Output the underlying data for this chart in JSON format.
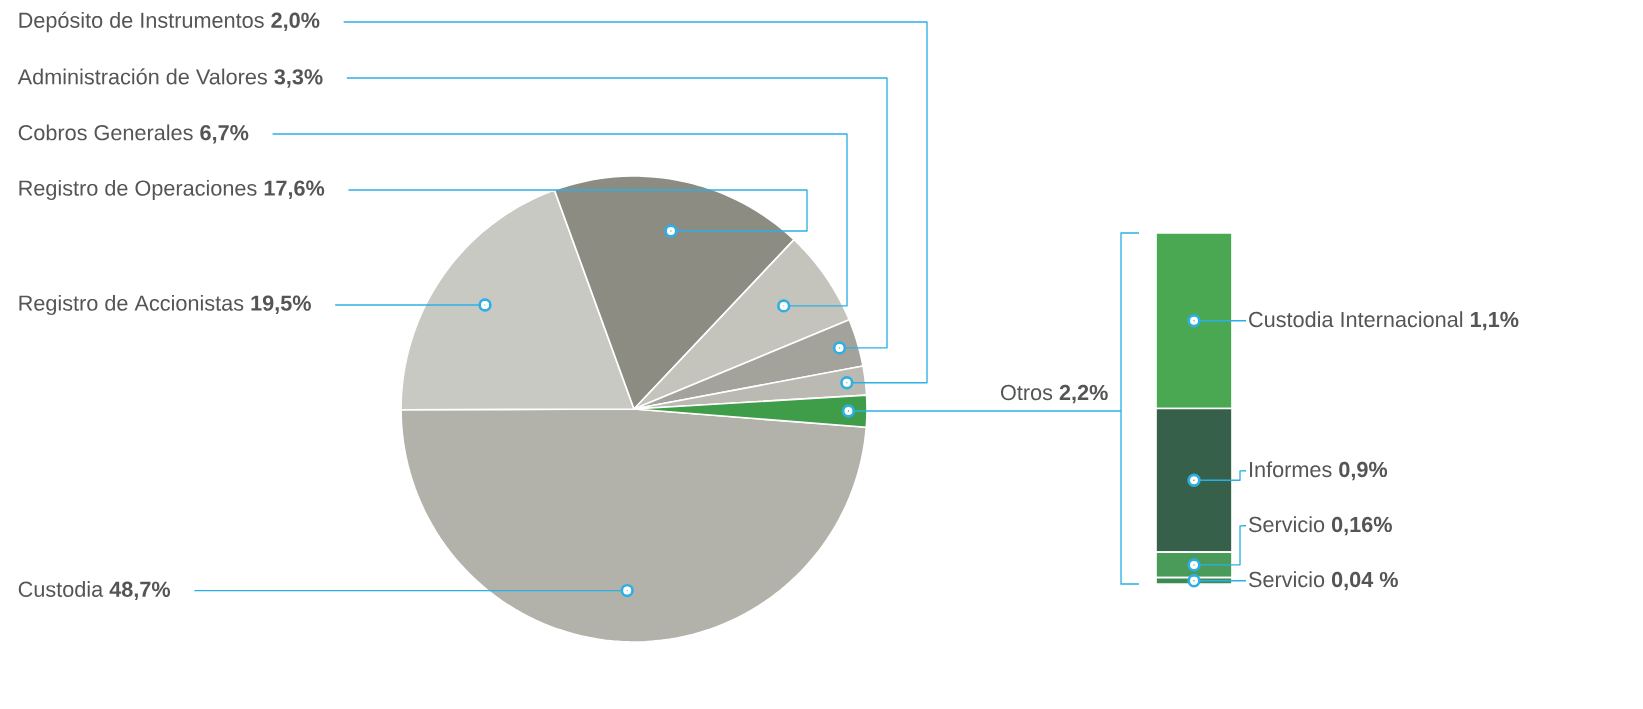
{
  "chart_data": [
    {
      "type": "pie",
      "categories": [
        "Custodia",
        "Registro de Accionistas",
        "Registro de Operaciones",
        "Cobros Generales",
        "Administración de Valores",
        "Depósito de Instrumentos",
        "Otros"
      ],
      "values": [
        48.7,
        19.5,
        17.6,
        6.7,
        3.3,
        2.0,
        2.2
      ],
      "value_labels": [
        "48,7%",
        "19,5%",
        "17,6%",
        "6,7%",
        "3,3%",
        "2,0%",
        "2,2%"
      ],
      "colors": [
        "#b2b2aa",
        "#c9c9c3",
        "#8c8c82",
        "#c4c4bc",
        "#a3a39b",
        "#babab2",
        "#3f9d4a"
      ]
    },
    {
      "type": "bar",
      "stacked": true,
      "categories": [
        null
      ],
      "series": [
        {
          "color": "#3d8a52",
          "values": [
            0.04
          ],
          "value_labels": [
            "Servicio **0,04 %**"
          ]
        },
        {
          "color": "#4a9a5a",
          "values": [
            0.16
          ],
          "value_labels": [
            "Servicio **0,16%**"
          ]
        },
        {
          "color": "#37604a",
          "values": [
            0.9
          ],
          "value_labels": [
            "Informes **0,9%**"
          ]
        },
        {
          "color": "#4aa852",
          "values": [
            1.1
          ],
          "value_labels": [
            "Custodia Internacional **1,1%**"
          ]
        }
      ]
    }
  ]
}
